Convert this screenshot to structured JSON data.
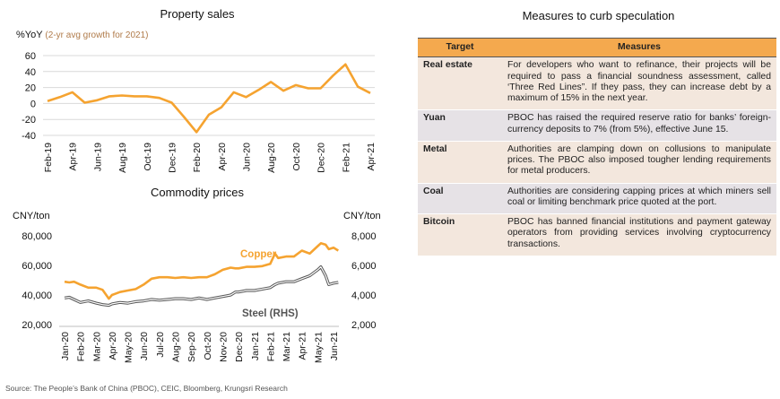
{
  "chart_data": [
    {
      "type": "line",
      "title": "Property sales",
      "ylabel": "%YoY",
      "ylabel_note": "(2-yr avg growth for 2021)",
      "ylim": [
        -40,
        60
      ],
      "yticks": [
        -40,
        -20,
        0,
        20,
        40,
        60
      ],
      "x_tick_labels": [
        "Feb-19",
        "Apr-19",
        "Jun-19",
        "Aug-19",
        "Oct-19",
        "Dec-19",
        "Feb-20",
        "Apr-20",
        "Jun-20",
        "Aug-20",
        "Oct-20",
        "Dec-20",
        "Feb-21",
        "Apr-21"
      ],
      "x": [
        "Feb-19",
        "Mar-19",
        "Apr-19",
        "May-19",
        "Jun-19",
        "Jul-19",
        "Aug-19",
        "Sep-19",
        "Oct-19",
        "Nov-19",
        "Dec-19",
        "Jan-20",
        "Feb-20",
        "Mar-20",
        "Apr-20",
        "May-20",
        "Jun-20",
        "Jul-20",
        "Aug-20",
        "Sep-20",
        "Oct-20",
        "Nov-20",
        "Dec-20",
        "Jan-21",
        "Feb-21",
        "Mar-21",
        "Apr-21"
      ],
      "series": [
        {
          "name": "",
          "color": "#f5a330",
          "values": [
            3,
            8,
            14,
            1,
            4,
            9,
            10,
            9,
            9,
            7,
            1,
            -17,
            -36,
            -14,
            -5,
            14,
            8,
            17,
            27,
            16,
            23,
            19,
            19,
            35,
            49,
            21,
            13
          ]
        }
      ]
    },
    {
      "type": "line",
      "title": "Commodity prices",
      "ylabel_left": "CNY/ton",
      "ylabel_right": "CNY/ton",
      "ylim_left": [
        20000,
        80000
      ],
      "yticks_left": [
        "20,000",
        "40,000",
        "60,000",
        "80,000"
      ],
      "ylim_right": [
        2000,
        8000
      ],
      "yticks_right": [
        "2,000",
        "4,000",
        "6,000",
        "8,000"
      ],
      "x_tick_labels": [
        "Jan-20",
        "Feb-20",
        "Mar-20",
        "Apr-20",
        "May-20",
        "Jun-20",
        "Jul-20",
        "Aug-20",
        "Sep-20",
        "Oct-20",
        "Nov-20",
        "Dec-20",
        "Jan-21",
        "Feb-21",
        "Mar-21",
        "Apr-21",
        "May-21",
        "Jun-21"
      ],
      "x_months": [
        0,
        0.3,
        0.6,
        1,
        1.5,
        2,
        2.4,
        2.8,
        3,
        3.5,
        4,
        4.5,
        5,
        5.5,
        6,
        6.5,
        7,
        7.5,
        8,
        8.5,
        9,
        9.5,
        10,
        10.5,
        10.8,
        11,
        11.5,
        12,
        12.5,
        13,
        13.3,
        13.5,
        14,
        14.5,
        15,
        15.5,
        16,
        16.2,
        16.5,
        16.7,
        17,
        17.3
      ],
      "series": [
        {
          "name": "Copper",
          "axis": "left",
          "color": "#f5a330",
          "values": [
            49000,
            48500,
            49000,
            47000,
            45000,
            45000,
            43500,
            37500,
            40000,
            42000,
            43000,
            44000,
            47000,
            51000,
            52000,
            52000,
            51500,
            52000,
            51500,
            52000,
            52000,
            54000,
            57000,
            58500,
            58000,
            58000,
            59000,
            59000,
            59500,
            61000,
            68000,
            65000,
            66000,
            66000,
            70000,
            68000,
            73000,
            75000,
            74000,
            71000,
            72000,
            70000
          ]
        },
        {
          "name": "Steel (RHS)",
          "axis": "right",
          "color": "#555555",
          "values": [
            3800,
            3850,
            3700,
            3500,
            3600,
            3450,
            3350,
            3300,
            3400,
            3500,
            3450,
            3550,
            3600,
            3700,
            3650,
            3700,
            3750,
            3750,
            3700,
            3800,
            3700,
            3800,
            3900,
            4000,
            4200,
            4200,
            4300,
            4300,
            4400,
            4500,
            4700,
            4800,
            4900,
            4900,
            5100,
            5300,
            5700,
            5900,
            5300,
            4700,
            4800,
            4850
          ]
        }
      ]
    }
  ],
  "measures": {
    "title": "Measures to curb speculation",
    "col_target": "Target",
    "col_measures": "Measures",
    "rows": [
      {
        "target": "Real estate",
        "text": "For developers who want to refinance, their projects will be required to pass a financial soundness assessment, called ‘Three Red Lines”. If they pass, they can increase debt by a maximum of 15% in the next year."
      },
      {
        "target": "Yuan",
        "text": "PBOC has raised the required reserve ratio for banks’ foreign-currency deposits to 7% (from 5%), effective June 15."
      },
      {
        "target": "Metal",
        "text": "Authorities are clamping down on collusions to manipulate prices. The PBOC also imposed tougher lending requirements for metal producers."
      },
      {
        "target": "Coal",
        "text": "Authorities are considering capping prices at which miners sell coal or limiting benchmark price quoted at the port."
      },
      {
        "target": "Bitcoin",
        "text": "PBOC has banned financial institutions and payment gateway operators from providing services involving cryptocurrency transactions."
      }
    ]
  },
  "source": "Source: The People’s Bank of China (PBOC), CEIC, Bloomberg, Krungsri Research"
}
